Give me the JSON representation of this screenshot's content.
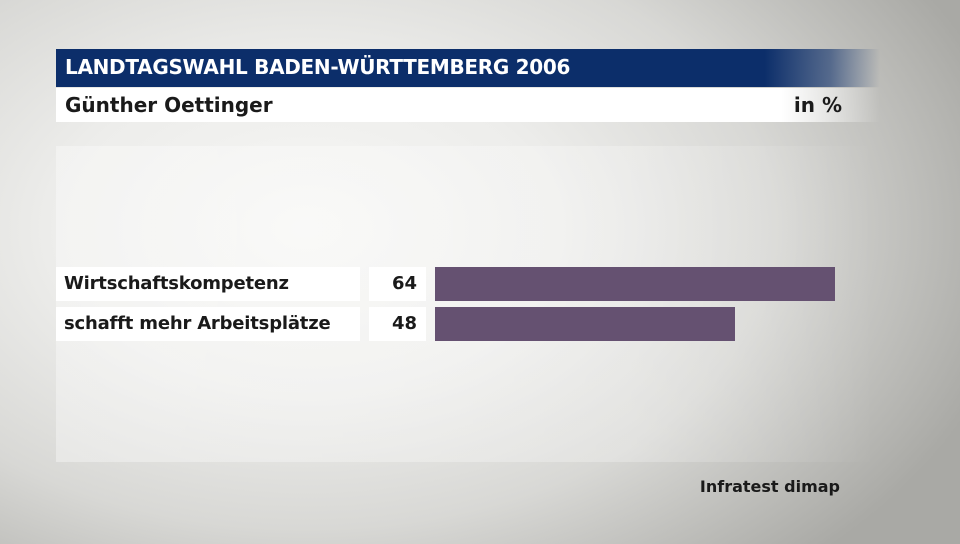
{
  "header": {
    "title": "LANDTAGSWAHL BADEN-WÜRTTEMBERG 2006",
    "subtitle": "Günther Oettinger",
    "unit": "in %"
  },
  "colors": {
    "title_bar": "#0c2e6a",
    "bar": "#655171"
  },
  "chart_data": {
    "type": "bar",
    "orientation": "horizontal",
    "title": "LANDTAGSWAHL BADEN-WÜRTTEMBERG 2006",
    "subtitle": "Günther Oettinger",
    "unit": "in %",
    "categories": [
      "Wirtschaftskompetenz",
      "schafft mehr Arbeitsplätze"
    ],
    "values": [
      64,
      48
    ],
    "value_labels": [
      "64",
      "48"
    ],
    "xlim": [
      0,
      64
    ],
    "grid": false,
    "legend": "none"
  },
  "source": "Infratest dimap"
}
